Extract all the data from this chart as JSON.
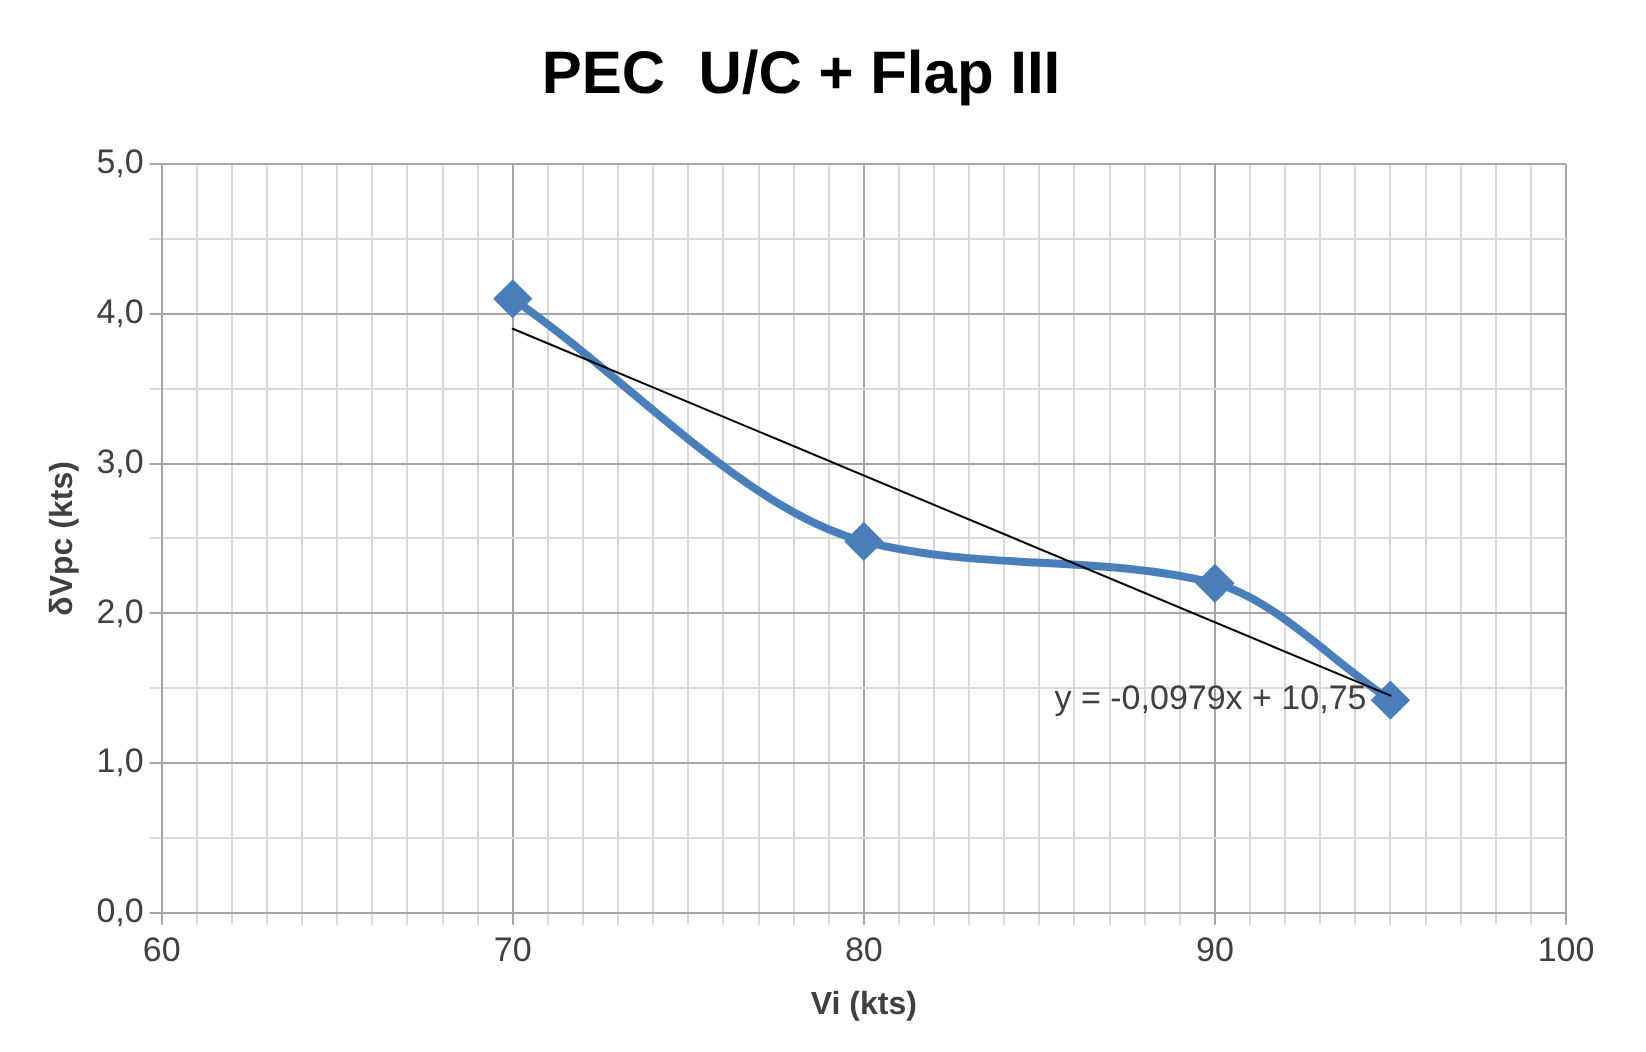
{
  "chart_data": {
    "type": "line",
    "title": "PEC  U/C + Flap III",
    "xlabel": "Vi (kts)",
    "ylabel": "δVpc (kts)",
    "xlim": [
      60,
      100
    ],
    "xticks": [
      {
        "value": 60,
        "label": "60"
      },
      {
        "value": 61,
        "label": null
      },
      {
        "value": 62,
        "label": null
      },
      {
        "value": 63,
        "label": null
      },
      {
        "value": 64,
        "label": null
      },
      {
        "value": 65,
        "label": null
      },
      {
        "value": 66,
        "label": null
      },
      {
        "value": 67,
        "label": null
      },
      {
        "value": 68,
        "label": null
      },
      {
        "value": 69,
        "label": null
      },
      {
        "value": 70,
        "label": "70"
      },
      {
        "value": 71,
        "label": null
      },
      {
        "value": 72,
        "label": null
      },
      {
        "value": 73,
        "label": null
      },
      {
        "value": 74,
        "label": null
      },
      {
        "value": 75,
        "label": null
      },
      {
        "value": 76,
        "label": null
      },
      {
        "value": 77,
        "label": null
      },
      {
        "value": 78,
        "label": null
      },
      {
        "value": 79,
        "label": null
      },
      {
        "value": 80,
        "label": "80"
      },
      {
        "value": 81,
        "label": null
      },
      {
        "value": 82,
        "label": null
      },
      {
        "value": 83,
        "label": null
      },
      {
        "value": 84,
        "label": null
      },
      {
        "value": 85,
        "label": null
      },
      {
        "value": 86,
        "label": null
      },
      {
        "value": 87,
        "label": null
      },
      {
        "value": 88,
        "label": null
      },
      {
        "value": 89,
        "label": null
      },
      {
        "value": 90,
        "label": "90"
      },
      {
        "value": 91,
        "label": null
      },
      {
        "value": 92,
        "label": null
      },
      {
        "value": 93,
        "label": null
      },
      {
        "value": 94,
        "label": null
      },
      {
        "value": 95,
        "label": null
      },
      {
        "value": 96,
        "label": null
      },
      {
        "value": 97,
        "label": null
      },
      {
        "value": 98,
        "label": null
      },
      {
        "value": 99,
        "label": null
      },
      {
        "value": 100,
        "label": "100"
      }
    ],
    "ylim": [
      0,
      5
    ],
    "yticks": [
      {
        "value": 0,
        "label": "0,0"
      },
      {
        "value": 0.5,
        "label": null
      },
      {
        "value": 1,
        "label": "1,0"
      },
      {
        "value": 1.5,
        "label": null
      },
      {
        "value": 2,
        "label": "2,0"
      },
      {
        "value": 2.5,
        "label": null
      },
      {
        "value": 3,
        "label": "3,0"
      },
      {
        "value": 3.5,
        "label": null
      },
      {
        "value": 4,
        "label": "4,0"
      },
      {
        "value": 4.5,
        "label": null
      },
      {
        "value": 5,
        "label": "5,0"
      }
    ],
    "grid": true,
    "legend": false,
    "series": [
      {
        "color": "#4a7ebb",
        "x": [
          70,
          80,
          90,
          95
        ],
        "values": [
          4.1,
          2.48,
          2.2,
          1.42
        ],
        "marker": "diamond"
      },
      {
        "color": "#000000",
        "x": [
          70,
          95
        ],
        "values": [
          3.9,
          1.45
        ],
        "marker": "none"
      }
    ],
    "annotations": [
      {
        "text": "y = -0,0979x + 10,75",
        "x": 95,
        "y": 1.45
      }
    ]
  }
}
